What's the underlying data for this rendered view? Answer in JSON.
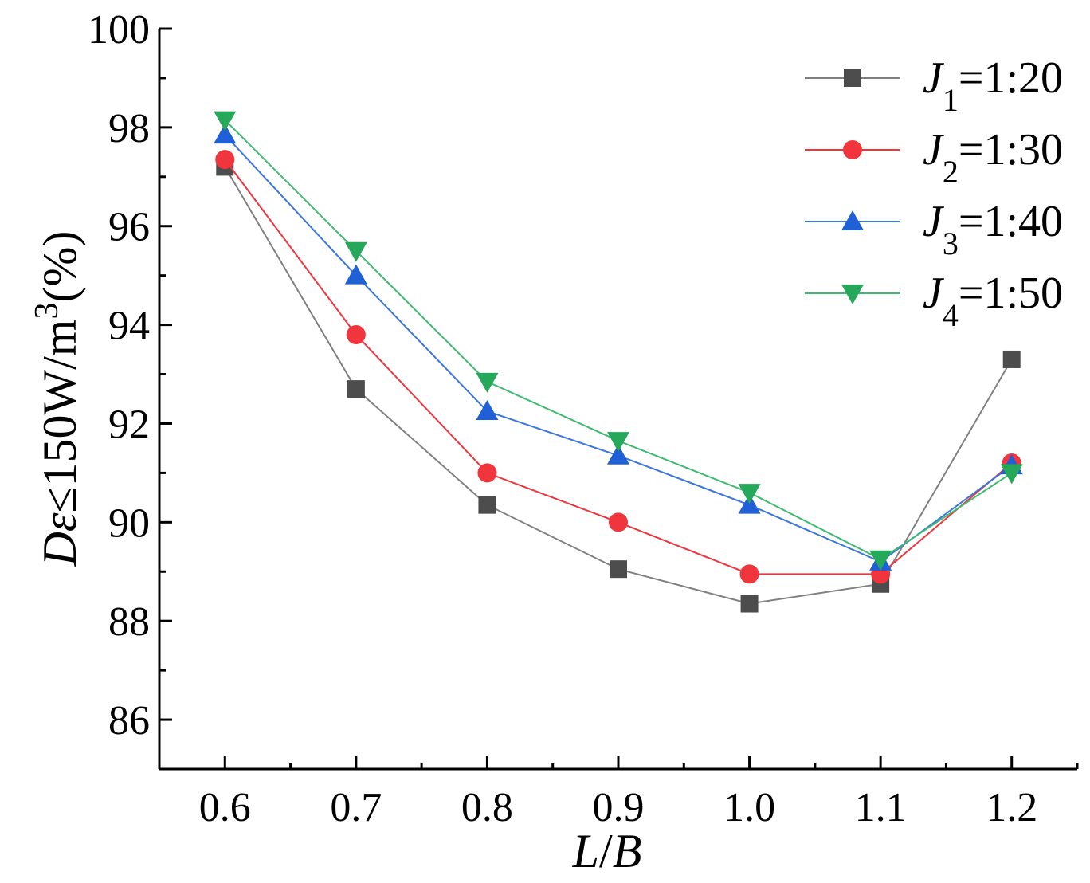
{
  "chart_data": {
    "type": "line",
    "title": "",
    "xlabel": "L/B",
    "ylabel": "Dε≤150W/m3(%)",
    "ylabel_parts": {
      "var": "Dε",
      "rest": "≤150W/m",
      "sup": "3",
      "tail": "(%)"
    },
    "xlabel_parts": {
      "var": "L",
      "slash": "/",
      "var2": "B"
    },
    "x": [
      0.6,
      0.7,
      0.8,
      0.9,
      1.0,
      1.1,
      1.2
    ],
    "x_tick_labels": [
      "0.6",
      "0.7",
      "0.8",
      "0.9",
      "1.0",
      "1.1",
      "1.2"
    ],
    "xlim": [
      0.55,
      1.25
    ],
    "ylim": [
      85,
      100
    ],
    "y_ticks": [
      86,
      88,
      90,
      92,
      94,
      96,
      98,
      100
    ],
    "y_tick_labels": [
      "86",
      "88",
      "90",
      "92",
      "94",
      "96",
      "98",
      "100"
    ],
    "grid": false,
    "legend_position": "top-right",
    "series": [
      {
        "name": "J1=1:20",
        "var": "J",
        "sub": "1",
        "ratio": "=1:20",
        "color": "#4d4d4d",
        "line_color": "#808080",
        "marker": "square",
        "values": [
          97.2,
          92.7,
          90.35,
          89.05,
          88.35,
          88.75,
          93.3
        ]
      },
      {
        "name": "J2=1:30",
        "var": "J",
        "sub": "2",
        "ratio": "=1:30",
        "color": "#f0353c",
        "line_color": "#f0353c",
        "marker": "circle",
        "values": [
          97.35,
          93.8,
          91.0,
          90.0,
          88.95,
          88.95,
          91.2
        ]
      },
      {
        "name": "J3=1:40",
        "var": "J",
        "sub": "3",
        "ratio": "=1:40",
        "color": "#1f60d6",
        "line_color": "#3a75e0",
        "marker": "triangle-up",
        "values": [
          97.85,
          95.0,
          92.25,
          91.35,
          90.35,
          89.2,
          91.15
        ]
      },
      {
        "name": "J4=1:50",
        "var": "J",
        "sub": "4",
        "ratio": "=1:50",
        "color": "#25a85a",
        "line_color": "#3dbb70",
        "marker": "triangle-down",
        "values": [
          98.15,
          95.5,
          92.85,
          91.65,
          90.6,
          89.25,
          91.0
        ]
      }
    ]
  }
}
